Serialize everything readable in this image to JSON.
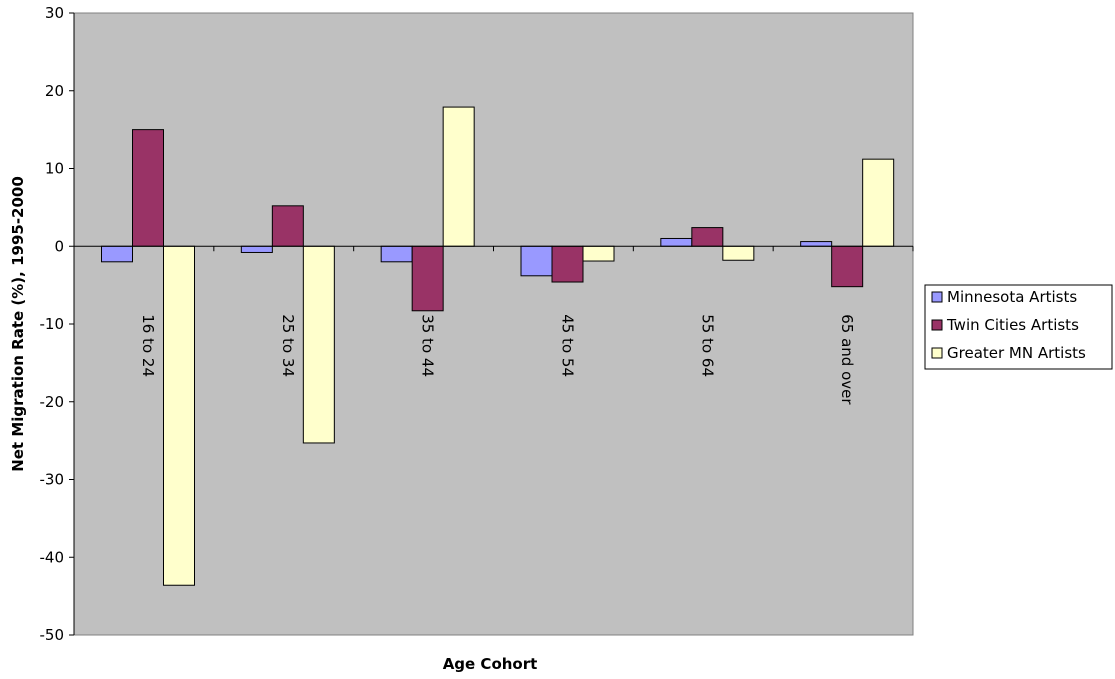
{
  "chart_data": {
    "type": "bar",
    "title": "",
    "xlabel": "Age Cohort",
    "ylabel": "Net Migration Rate (%), 1995-2000",
    "ylim": [
      -50,
      30
    ],
    "yticks": [
      "30",
      "20",
      "10",
      "0",
      "-10",
      "-20",
      "-30",
      "-40",
      "-50"
    ],
    "grid": false,
    "legend_position": "right",
    "plot_background": "#c0c0c0",
    "categories": [
      "16 to 24",
      "25 to 34",
      "35 to 44",
      "45 to 54",
      "55 to 64",
      "65 and over"
    ],
    "series": [
      {
        "name": "Minnesota Artists",
        "color": "#9999ff",
        "values": [
          -2.0,
          -0.8,
          -2.0,
          -3.8,
          1.0,
          0.6
        ]
      },
      {
        "name": "Twin Cities Artists",
        "color": "#993366",
        "values": [
          15.0,
          5.2,
          -8.3,
          -4.6,
          2.4,
          -5.2
        ]
      },
      {
        "name": "Greater MN Artists",
        "color": "#ffffcc",
        "values": [
          -43.6,
          -25.3,
          17.9,
          -1.9,
          -1.8,
          11.2
        ]
      }
    ]
  }
}
